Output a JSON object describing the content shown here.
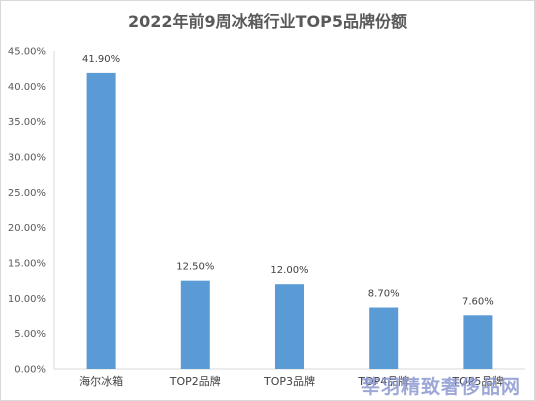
{
  "chart_data": {
    "type": "bar",
    "title": "2022年前9周冰箱行业TOP5品牌份额",
    "categories": [
      "海尔冰箱",
      "TOP2品牌",
      "TOP3品牌",
      "TOP4品牌",
      "TOP5品牌"
    ],
    "values": [
      41.9,
      12.5,
      12.0,
      8.7,
      7.6
    ],
    "data_labels": [
      "41.90%",
      "12.50%",
      "12.00%",
      "8.70%",
      "7.60%"
    ],
    "ylim": [
      0,
      45
    ],
    "y_ticks": [
      "0.00%",
      "5.00%",
      "10.00%",
      "15.00%",
      "20.00%",
      "25.00%",
      "30.00%",
      "35.00%",
      "40.00%",
      "45.00%"
    ],
    "grid": false,
    "legend": "none",
    "bar_color": "#5b9bd5"
  },
  "watermark": "莘羽精致奢侈品网"
}
